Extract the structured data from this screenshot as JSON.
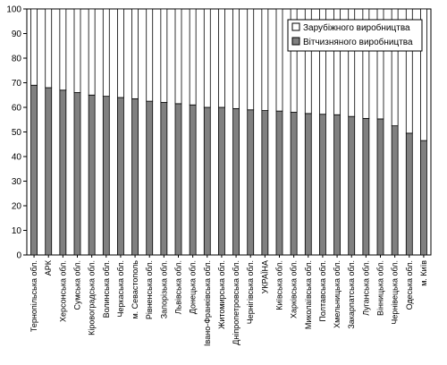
{
  "chart_data": {
    "type": "bar",
    "stacked": true,
    "categories": [
      "Тернопільська обл.",
      "АРК",
      "Херсонська обл.",
      "Сумська обл.",
      "Кіровоградська обл.",
      "Волинська обл.",
      "Черкаська обл.",
      "м. Севастополь",
      "Рівненська обл.",
      "Запорізька обл.",
      "Львівська обл.",
      "Донецька обл.",
      "Івано-Франківська обл.",
      "Житомирська обл.",
      "Дніпропетровська обл.",
      "Чернігівська обл.",
      "УКРАЇНА",
      "Київська обл.",
      "Харківська обл.",
      "Миколаївська обл.",
      "Полтавська обл.",
      "Хмельницька обл.",
      "Закарпатська обл.",
      "Луганська обл.",
      "Вінницька обл.",
      "Чернівецька обл.",
      "Одеська обл.",
      "м. Київ"
    ],
    "series": [
      {
        "name": "Вітчизняного виробництва",
        "color": "#808080",
        "values": [
          69,
          68,
          67,
          66,
          65,
          64.5,
          64,
          63.5,
          62.5,
          62,
          61.5,
          61,
          60,
          60,
          59.5,
          59,
          58.7,
          58.5,
          58,
          57.5,
          57.2,
          57,
          56.3,
          55.5,
          55.3,
          52.5,
          49.5,
          46.5
        ]
      },
      {
        "name": "Зарубіжного виробництва",
        "color": "#ffffff",
        "values": [
          31,
          32,
          33,
          34,
          35,
          35.5,
          36,
          36.5,
          37.5,
          38,
          38.5,
          39,
          40,
          40,
          40.5,
          41,
          41.3,
          41.5,
          42,
          42.5,
          42.8,
          43,
          43.7,
          44.5,
          44.7,
          47.5,
          50.5,
          53.5
        ]
      }
    ],
    "y_ticks": [
      "0",
      "10",
      "20",
      "30",
      "40",
      "50",
      "60",
      "70",
      "80",
      "90",
      "100"
    ],
    "ylim": [
      0,
      100
    ],
    "grid": false,
    "legend_position": "top-right"
  }
}
